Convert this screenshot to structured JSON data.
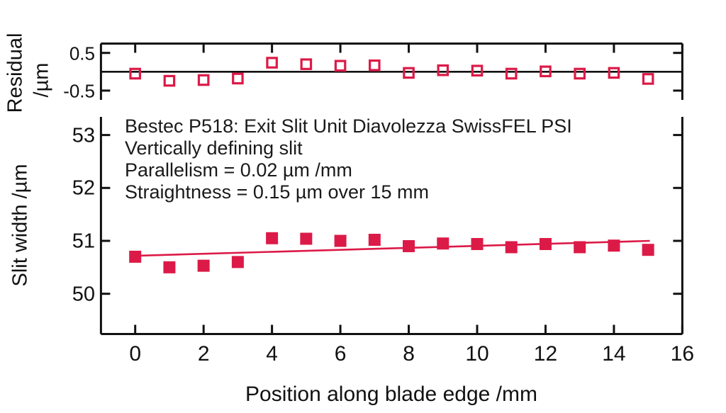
{
  "figure": {
    "background": "#ffffff",
    "axis_color": "#111111",
    "accent": "#dc1a47"
  },
  "chart_data": [
    {
      "id": "residual-panel",
      "type": "scatter",
      "marker": "open-square",
      "ylabel_lines": [
        "Residual",
        "/µm"
      ],
      "x": [
        0,
        1,
        2,
        3,
        4,
        5,
        6,
        7,
        8,
        9,
        10,
        11,
        12,
        13,
        14,
        15
      ],
      "values": [
        -0.05,
        -0.24,
        -0.22,
        -0.18,
        0.24,
        0.2,
        0.16,
        0.17,
        -0.03,
        0.04,
        0.03,
        -0.05,
        0.01,
        -0.05,
        -0.03,
        -0.19
      ],
      "xlim": [
        -1,
        16
      ],
      "ylim": [
        -0.75,
        0.75
      ],
      "xticks": [
        0,
        2,
        4,
        6,
        8,
        10,
        12,
        14,
        16
      ],
      "yticks": [
        0.5,
        -0.5
      ],
      "ytick_labels": [
        "0.5",
        "-0.5"
      ],
      "zero_line": true,
      "grid": false,
      "legend": "none"
    },
    {
      "id": "slit-width-panel",
      "type": "scatter",
      "marker": "filled-square",
      "xlabel": "Position along blade edge /mm",
      "ylabel": "Slit width /µm",
      "x": [
        0,
        1,
        2,
        3,
        4,
        5,
        6,
        7,
        8,
        9,
        10,
        11,
        12,
        13,
        14,
        15
      ],
      "values": [
        50.7,
        50.5,
        50.53,
        50.6,
        51.05,
        51.04,
        51.0,
        51.02,
        50.9,
        50.95,
        50.94,
        50.88,
        50.94,
        50.88,
        50.91,
        50.83
      ],
      "fit_line": {
        "x1": 0.1,
        "y1": 50.72,
        "x2": 15.05,
        "y2": 51.0
      },
      "xlim": [
        -1,
        16
      ],
      "ylim": [
        49.25,
        53.35
      ],
      "xticks": [
        0,
        2,
        4,
        6,
        8,
        10,
        12,
        14,
        16
      ],
      "xtick_labels": [
        "0",
        "2",
        "4",
        "6",
        "8",
        "10",
        "12",
        "14",
        "16"
      ],
      "yticks": [
        50,
        51,
        52,
        53
      ],
      "ytick_labels": [
        "50",
        "51",
        "52",
        "53"
      ],
      "grid": false,
      "legend": "none",
      "annotations": [
        "Bestec P518: Exit Slit Unit Diavolezza SwissFEL PSI",
        "Vertically defining slit",
        "Parallelism = 0.02 µm /mm",
        "Straightness = 0.15 µm over 15 mm"
      ]
    }
  ]
}
